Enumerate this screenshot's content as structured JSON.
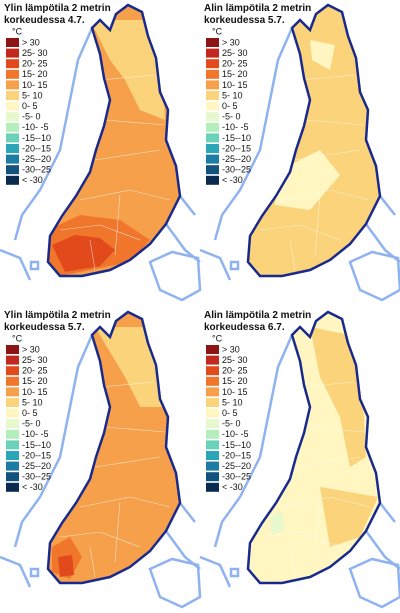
{
  "legend": {
    "unit": "°C",
    "items": [
      {
        "label": "> 30",
        "color": "#8c1414"
      },
      {
        "label": "25- 30",
        "color": "#c2281e"
      },
      {
        "label": "20- 25",
        "color": "#e24a1c"
      },
      {
        "label": "15- 20",
        "color": "#f0762c"
      },
      {
        "label": "10- 15",
        "color": "#f6a04c"
      },
      {
        "label": "5- 10",
        "color": "#fad37a"
      },
      {
        "label": "0- 5",
        "color": "#fff6c2"
      },
      {
        "label": "-5- 0",
        "color": "#e6f8cc"
      },
      {
        "label": "-10- -5",
        "color": "#b4eebc"
      },
      {
        "label": "-15--10",
        "color": "#6ad2b8"
      },
      {
        "label": "-20--15",
        "color": "#2aa6b8"
      },
      {
        "label": "-25--20",
        "color": "#1c7ca4"
      },
      {
        "label": "-30--25",
        "color": "#14527e"
      },
      {
        "label": "< -30",
        "color": "#0a2a50"
      }
    ]
  },
  "panels": [
    {
      "title": [
        "Ylin lämpötila 2 metrin",
        "korkeudessa 4.7."
      ]
    },
    {
      "title": [
        "Alin lämpötila 2 metrin",
        "korkeudessa 5.7."
      ]
    },
    {
      "title": [
        "Ylin lämpötila 2 metrin",
        "korkeudessa 5.7."
      ]
    },
    {
      "title": [
        "Alin lämpötila 2 metrin",
        "korkeudessa 6.7."
      ]
    }
  ]
}
